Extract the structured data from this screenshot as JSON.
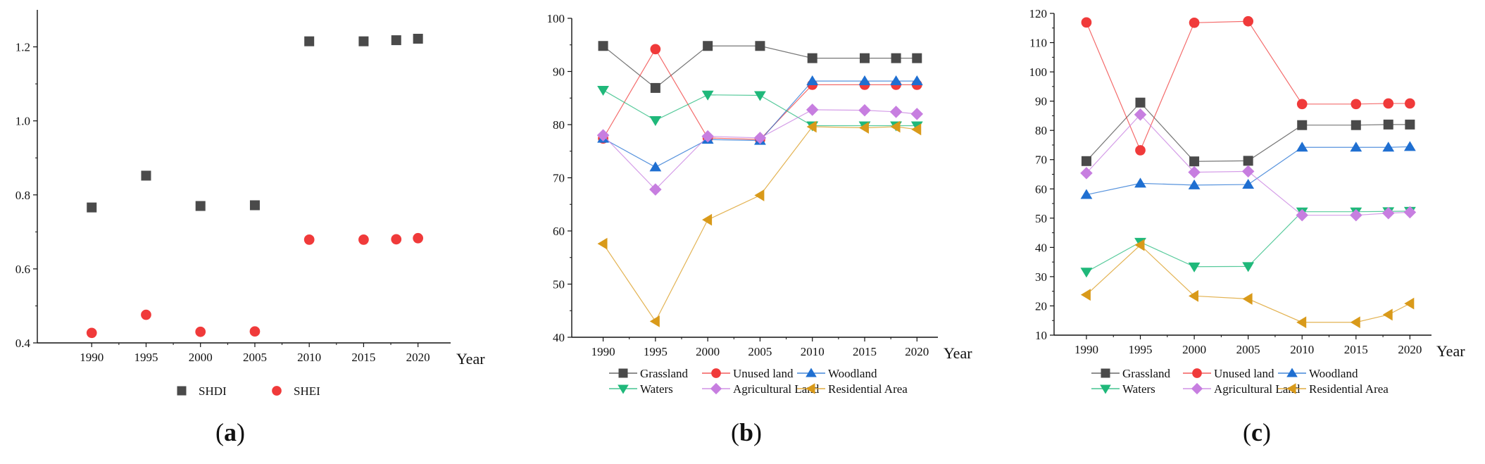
{
  "chart_data": [
    {
      "panel": "(a)",
      "panel_letter": "a",
      "type": "scatter",
      "x_label": "Year",
      "x_ticks": [
        "1990",
        "1995",
        "2000",
        "2005",
        "2010",
        "2015",
        "2020"
      ],
      "x_range": [
        1985,
        2023
      ],
      "y_range": [
        0.4,
        1.3
      ],
      "y_ticks": [
        "0.4",
        "0.6",
        "0.8",
        "1.0",
        "1.2"
      ],
      "y_tick_values": [
        0.4,
        0.6,
        0.8,
        1.0,
        1.2
      ],
      "series": [
        {
          "name": "SHDI",
          "marker": "square",
          "color": "#4a4a4a",
          "points": [
            [
              1990,
              0.766
            ],
            [
              1995,
              0.852
            ],
            [
              2000,
              0.77
            ],
            [
              2005,
              0.772
            ],
            [
              2010,
              1.215
            ],
            [
              2015,
              1.215
            ],
            [
              2018,
              1.218
            ],
            [
              2020,
              1.222
            ]
          ]
        },
        {
          "name": "SHEI",
          "marker": "circle",
          "color": "#f03a3a",
          "points": [
            [
              1990,
              0.427
            ],
            [
              1995,
              0.476
            ],
            [
              2000,
              0.43
            ],
            [
              2005,
              0.431
            ],
            [
              2010,
              0.679
            ],
            [
              2015,
              0.679
            ],
            [
              2018,
              0.68
            ],
            [
              2020,
              0.683
            ]
          ]
        }
      ]
    },
    {
      "panel": "(b)",
      "panel_letter": "b",
      "type": "line",
      "x_label": "Year",
      "x_ticks": [
        "1990",
        "1995",
        "2000",
        "2005",
        "2010",
        "2015",
        "2020"
      ],
      "x_range": [
        1987,
        2022
      ],
      "y_range": [
        40,
        100
      ],
      "y_ticks": [
        "40",
        "50",
        "60",
        "70",
        "80",
        "90",
        "100"
      ],
      "y_tick_values": [
        40,
        50,
        60,
        70,
        80,
        90,
        100
      ],
      "x": [
        1990,
        1995,
        2000,
        2005,
        2010,
        2015,
        2018,
        2020
      ],
      "series": [
        {
          "name": "Grassland",
          "marker": "square",
          "color": "#4a4a4a",
          "values": [
            94.8,
            86.9,
            94.8,
            94.8,
            92.5,
            92.5,
            92.5,
            92.5
          ]
        },
        {
          "name": "Unused land",
          "marker": "circle",
          "color": "#f03a3a",
          "values": [
            77.4,
            94.2,
            77.5,
            77.2,
            87.5,
            87.5,
            87.5,
            87.5
          ]
        },
        {
          "name": "Woodland",
          "marker": "triangle-up",
          "color": "#1f6fd1",
          "values": [
            77.4,
            72.0,
            77.2,
            77.0,
            88.2,
            88.2,
            88.2,
            88.2
          ]
        },
        {
          "name": "Waters",
          "marker": "triangle-down",
          "color": "#1fb87a",
          "values": [
            86.5,
            80.8,
            85.6,
            85.5,
            79.8,
            79.8,
            79.8,
            79.8
          ]
        },
        {
          "name": "Agricultural Land",
          "marker": "diamond",
          "color": "#c77ee0",
          "values": [
            78.0,
            67.8,
            77.8,
            77.5,
            82.8,
            82.7,
            82.4,
            82.0
          ]
        },
        {
          "name": "Residential Area",
          "marker": "triangle-left",
          "color": "#d99a1a",
          "values": [
            57.6,
            43.0,
            62.1,
            66.7,
            79.6,
            79.4,
            79.6,
            79.1
          ]
        }
      ]
    },
    {
      "panel": "(c)",
      "panel_letter": "c",
      "type": "line",
      "x_label": "Year",
      "x_ticks": [
        "1990",
        "1995",
        "2000",
        "2005",
        "2010",
        "2015",
        "2020"
      ],
      "x_range": [
        1987,
        2022
      ],
      "y_range": [
        10,
        120
      ],
      "y_ticks": [
        "10",
        "20",
        "30",
        "40",
        "50",
        "60",
        "70",
        "80",
        "90",
        "100",
        "110",
        "120"
      ],
      "y_tick_values": [
        10,
        20,
        30,
        40,
        50,
        60,
        70,
        80,
        90,
        100,
        110,
        120
      ],
      "x": [
        1990,
        1995,
        2000,
        2005,
        2010,
        2015,
        2018,
        2020
      ],
      "series": [
        {
          "name": "Grassland",
          "marker": "square",
          "color": "#4a4a4a",
          "values": [
            69.5,
            89.5,
            69.4,
            69.6,
            81.8,
            81.8,
            82.0,
            82.0
          ]
        },
        {
          "name": "Unused land",
          "marker": "circle",
          "color": "#f03a3a",
          "values": [
            116.9,
            73.2,
            116.8,
            117.3,
            89.0,
            89.0,
            89.2,
            89.2
          ]
        },
        {
          "name": "Woodland",
          "marker": "triangle-up",
          "color": "#1f6fd1",
          "values": [
            58.0,
            61.9,
            61.3,
            61.5,
            74.2,
            74.2,
            74.2,
            74.4
          ]
        },
        {
          "name": "Waters",
          "marker": "triangle-down",
          "color": "#1fb87a",
          "values": [
            31.6,
            41.8,
            33.4,
            33.5,
            52.2,
            52.2,
            52.3,
            52.4
          ]
        },
        {
          "name": "Agricultural Land",
          "marker": "diamond",
          "color": "#c77ee0",
          "values": [
            65.4,
            85.4,
            65.7,
            66.0,
            51.0,
            51.0,
            51.7,
            52.0
          ]
        },
        {
          "name": "Residential Area",
          "marker": "triangle-left",
          "color": "#d99a1a",
          "values": [
            23.8,
            40.8,
            23.4,
            22.4,
            14.4,
            14.4,
            17.0,
            20.8
          ]
        }
      ]
    }
  ]
}
